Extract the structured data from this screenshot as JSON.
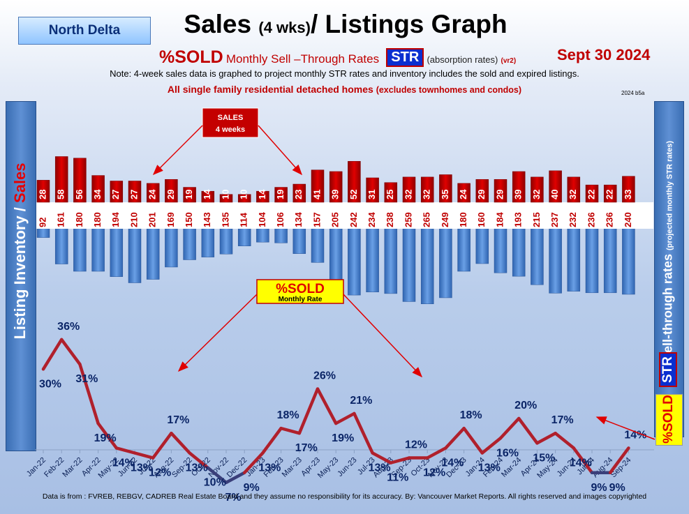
{
  "header": {
    "region": "North Delta",
    "title_main": "Sales",
    "title_small": "(4 wks)",
    "title_rest": "/ Listings Graph",
    "subtitle_sold": "%SOLD",
    "subtitle_rate": "Monthly Sell –Through Rates",
    "subtitle_str": "STR",
    "subtitle_absorption": "(absorption rates)",
    "subtitle_version": "(vr2)",
    "date": "Sept  30  2024",
    "note": "Note: 4-week sales data is graphed to project monthly STR rates and inventory includes the sold and expired listings.",
    "homes_note": "All single family residential detached homes",
    "homes_note_small": "(excludes townhomes and condos)",
    "version_tag": "2024 b5a"
  },
  "axes": {
    "left_label_1": "Listing Inventory / ",
    "left_label_2": "Sales",
    "right_label": "Sell-through rates",
    "right_label_small": "(projected monthly STR rates)",
    "right_str": "STR",
    "right_sold": "%SOLD"
  },
  "annotations": {
    "sales_box_line1": "SALES",
    "sales_box_line2": "4  weeks",
    "sold_box_line1": "%SOLD",
    "sold_box_line2": "Monthly Rate"
  },
  "footer": "Data is from : FVREB, REBGV, CADREB Real Estate Board and they assume no responsibility for its accuracy. By: Vancouver Market Reports. All rights reserved and  images copyrighted",
  "colors": {
    "sales_bar": "#c80000",
    "inventory_bar": "#3f7fd2",
    "str_line": "#b0202c",
    "label_blue": "#0a2466"
  },
  "chart_data": {
    "type": "bar+line",
    "categories": [
      "Jan-22",
      "Feb-22",
      "Mar-22",
      "Apr-22",
      "May-22",
      "Jun-22",
      "Jul-22",
      "Aug-22",
      "Sep-22",
      "Oct-22",
      "Nov-22",
      "Dec-22",
      "Jan-23",
      "Feb-23",
      "Mar-23",
      "Apr-23",
      "May-23",
      "Jun-23",
      "Jul-23",
      "Aug-23",
      "Sep-23",
      "Oct-23",
      "Nov-23",
      "Dec-23",
      "Jan-24",
      "Feb-24",
      "Mar-24",
      "Apr-24",
      "May-24",
      "Jun-24",
      "Jul-24",
      "Aug-24",
      "Sep-24"
    ],
    "series": [
      {
        "name": "Sales",
        "values": [
          28,
          58,
          56,
          34,
          27,
          27,
          24,
          29,
          19,
          14,
          10,
          10,
          14,
          19,
          23,
          41,
          39,
          52,
          31,
          25,
          32,
          32,
          35,
          24,
          29,
          29,
          39,
          32,
          40,
          32,
          22,
          22,
          33
        ]
      },
      {
        "name": "Listing Inventory",
        "values": [
          92,
          161,
          180,
          180,
          194,
          210,
          201,
          169,
          150,
          143,
          135,
          114,
          104,
          106,
          134,
          157,
          205,
          242,
          234,
          238,
          259,
          265,
          249,
          180,
          160,
          184,
          193,
          215,
          237,
          232,
          236,
          236,
          240
        ]
      },
      {
        "name": "%SOLD",
        "values": [
          30,
          36,
          31,
          19,
          14,
          13,
          12,
          17,
          13,
          10,
          7,
          9,
          13,
          18,
          17,
          26,
          19,
          21,
          13,
          11,
          12,
          12,
          14,
          18,
          13,
          16,
          20,
          15,
          17,
          14,
          9,
          9,
          14
        ],
        "labels": [
          "30%",
          "36%",
          "31%",
          "19%",
          "14%",
          "13%",
          "12%",
          "17%",
          "13%",
          "10%",
          "7%",
          "9%",
          "13%",
          "18%",
          "17%",
          "26%",
          "19%",
          "21%",
          "13%",
          "11%",
          "12%",
          "12%",
          "14%",
          "18%",
          "13%",
          "16%",
          "20%",
          "15%",
          "17%",
          "14%",
          "9%",
          "9%",
          "14%"
        ]
      }
    ],
    "units": {
      "sales": "homes",
      "inventory": "homes",
      "sold": "percent"
    }
  }
}
